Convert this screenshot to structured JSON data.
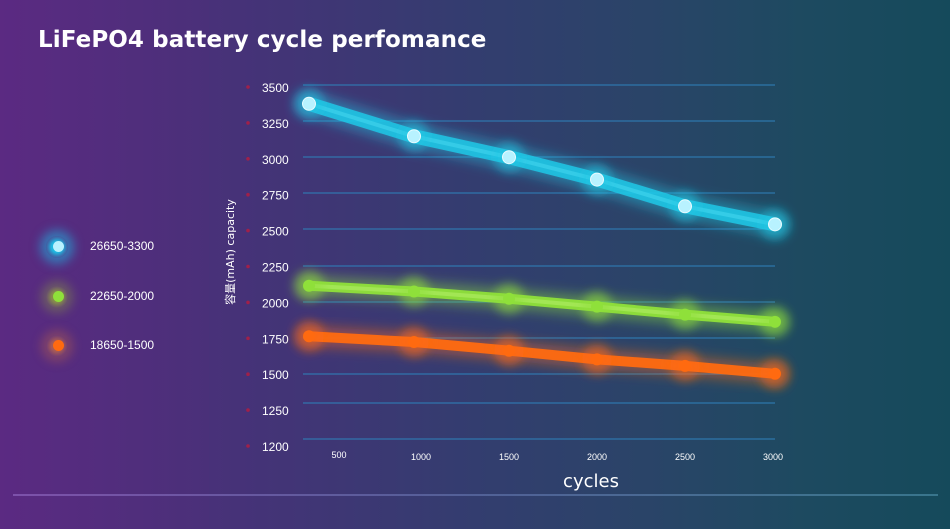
{
  "chart_data": {
    "type": "line",
    "title": "LiFePO4 battery cycle perfomance",
    "xlabel": "cycles",
    "ylabel": "容量(mAh)  capacity",
    "x": [
      500,
      1000,
      1500,
      2000,
      2500,
      3000
    ],
    "x_tick_labels": [
      "500",
      "1000",
      "1500",
      "2000",
      "2500",
      "3000"
    ],
    "y_tick_labels": [
      "3500",
      "3250",
      "3000",
      "2750",
      "2500",
      "2250",
      "2000",
      "1750",
      "1500",
      "1250",
      "1200"
    ],
    "ylim": [
      1200,
      3500
    ],
    "grid": true,
    "legend_position": "left",
    "series": [
      {
        "name": "26650-3300",
        "color": "#1ec8e6",
        "dot_color": "#b8f2ff",
        "values": [
          3370,
          3145,
          3000,
          2845,
          2660,
          2535
        ]
      },
      {
        "name": "22650-2000",
        "color": "#8fe03a",
        "dot_color": "#8fe03a",
        "values": [
          2110,
          2070,
          2020,
          1965,
          1910,
          1860
        ]
      },
      {
        "name": "18650-1500",
        "color": "#ff6a10",
        "dot_color": "#ff6a10",
        "values": [
          1760,
          1720,
          1660,
          1600,
          1555,
          1500
        ]
      }
    ]
  },
  "colors": {
    "gridline": "#2f7fb8",
    "tick_dot": "#a0204a",
    "text": "#ffffff"
  }
}
